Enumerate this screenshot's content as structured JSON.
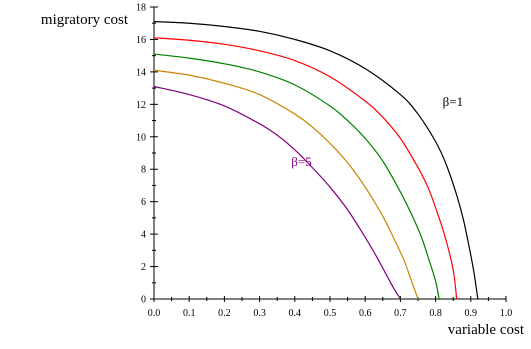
{
  "chart_data": {
    "type": "line",
    "xlabel": "variable cost",
    "ylabel": "migratory cost",
    "xlim": [
      0.0,
      1.0
    ],
    "ylim": [
      0,
      18
    ],
    "x_ticks": [
      "0.0",
      "0.1",
      "0.2",
      "0.3",
      "0.4",
      "0.5",
      "0.6",
      "0.7",
      "0.8",
      "0.9",
      "1.0"
    ],
    "y_ticks": [
      "0",
      "2",
      "4",
      "6",
      "8",
      "10",
      "12",
      "14",
      "16",
      "18"
    ],
    "grid": false,
    "legend": "none",
    "series": [
      {
        "name": "β=1",
        "color": "#000000",
        "x": [
          0.0,
          0.1,
          0.2,
          0.3,
          0.4,
          0.5,
          0.6,
          0.7,
          0.75,
          0.8,
          0.83,
          0.86,
          0.88,
          0.9,
          0.91,
          0.92
        ],
        "y": [
          17.1,
          17.0,
          16.8,
          16.5,
          16.0,
          15.3,
          14.2,
          12.6,
          11.4,
          9.7,
          8.3,
          6.4,
          4.8,
          2.7,
          1.5,
          0.0
        ]
      },
      {
        "name": "",
        "color": "#ff0000",
        "x": [
          0.0,
          0.1,
          0.2,
          0.3,
          0.4,
          0.5,
          0.6,
          0.65,
          0.7,
          0.75,
          0.78,
          0.81,
          0.83,
          0.85,
          0.86
        ],
        "y": [
          16.1,
          15.95,
          15.7,
          15.3,
          14.7,
          13.7,
          12.2,
          11.2,
          9.9,
          8.1,
          6.8,
          5.0,
          3.6,
          1.8,
          0.0
        ]
      },
      {
        "name": "",
        "color": "#008000",
        "x": [
          0.0,
          0.1,
          0.2,
          0.3,
          0.4,
          0.5,
          0.55,
          0.6,
          0.65,
          0.7,
          0.73,
          0.76,
          0.78,
          0.8,
          0.81
        ],
        "y": [
          15.1,
          14.85,
          14.5,
          14.0,
          13.2,
          11.9,
          11.0,
          9.9,
          8.5,
          6.6,
          5.3,
          3.8,
          2.5,
          1.1,
          0.0
        ]
      },
      {
        "name": "",
        "color": "#cc8400",
        "x": [
          0.0,
          0.1,
          0.2,
          0.3,
          0.4,
          0.45,
          0.5,
          0.55,
          0.6,
          0.65,
          0.68,
          0.71,
          0.73,
          0.75
        ],
        "y": [
          14.1,
          13.8,
          13.3,
          12.6,
          11.4,
          10.6,
          9.6,
          8.4,
          6.9,
          5.1,
          3.8,
          2.4,
          1.2,
          0.0
        ]
      },
      {
        "name": "β=5",
        "color": "#800080",
        "x": [
          0.0,
          0.1,
          0.2,
          0.3,
          0.35,
          0.4,
          0.45,
          0.5,
          0.55,
          0.6,
          0.63,
          0.66,
          0.68,
          0.7
        ],
        "y": [
          13.1,
          12.6,
          11.9,
          10.8,
          10.1,
          9.2,
          8.1,
          6.9,
          5.5,
          3.8,
          2.7,
          1.5,
          0.7,
          0.0
        ]
      }
    ],
    "annotations": [
      {
        "text": "β=1",
        "color": "#000000",
        "x": 0.82,
        "y": 11.9
      },
      {
        "text": "β=5",
        "color": "#800080",
        "x": 0.39,
        "y": 8.2
      }
    ]
  }
}
